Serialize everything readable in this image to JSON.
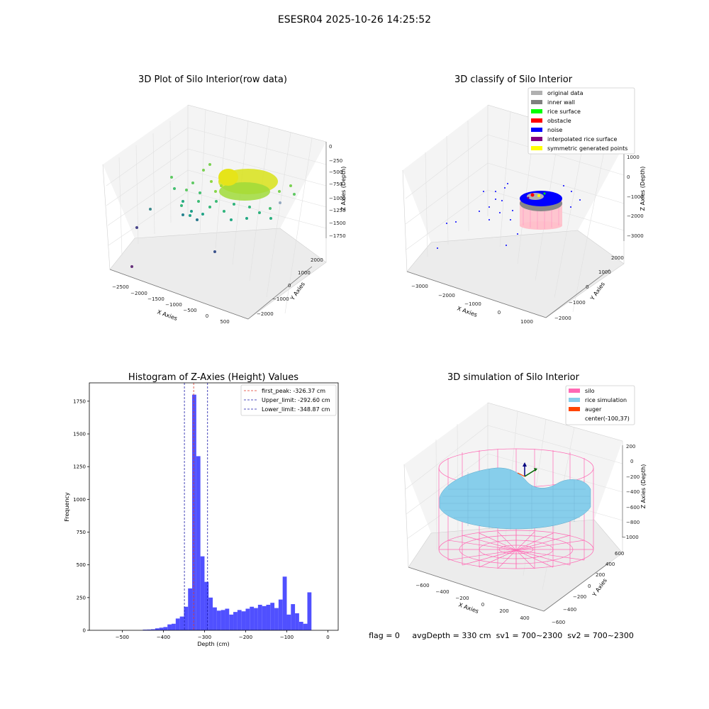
{
  "figure": {
    "suptitle": "ESESR04 2025-10-26 14:25:52",
    "status_line": "flag = 0     avgDepth = 330 cm  sv1 = 700~2300  sv2 = 700~2300",
    "colors": {
      "histogram_bar": "#5050ff",
      "first_peak_line": "#e03a2a",
      "limit_line": "#1a1aa8",
      "silo": "#ff69b4",
      "rice_simulation": "#87ceeb",
      "auger": "#ff4500"
    }
  },
  "chart_data": [
    {
      "type": "scatter",
      "title": "3D Plot of Silo Interior(row data)",
      "xlabel": "X Axies",
      "ylabel": "Y Axies",
      "zlabel": "Z Axies (Depth)",
      "x_ticks": [
        "−2500",
        "−2000",
        "−1500",
        "−1000",
        "−500",
        "0",
        "500"
      ],
      "y_ticks": [
        "−2000",
        "−1000",
        "0",
        "1000",
        "2000"
      ],
      "z_ticks": [
        "0",
        "−250",
        "−500",
        "−750",
        "−1000",
        "−1250",
        "−1500",
        "−1750"
      ],
      "grid": true
    },
    {
      "type": "scatter",
      "title": "3D classify of Silo Interior",
      "xlabel": "X Axies",
      "ylabel": "Y Axies",
      "zlabel": "Z Axies (Depth)",
      "x_ticks": [
        "−3000",
        "−2000",
        "−1000",
        "0",
        "1000"
      ],
      "y_ticks": [
        "−2000",
        "−1000",
        "0",
        "1000",
        "2000"
      ],
      "z_ticks": [
        "1000",
        "0",
        "−1000",
        "−2000",
        "−3000"
      ],
      "legend_position": "top-right",
      "legend": [
        {
          "label": "original data",
          "color": "#b0b0b0"
        },
        {
          "label": "inner wall",
          "color": "#808080"
        },
        {
          "label": "rice surface",
          "color": "#00ff00"
        },
        {
          "label": "obstacle",
          "color": "#ff0000"
        },
        {
          "label": "noise",
          "color": "#0000ff"
        },
        {
          "label": "interpolated rice surface",
          "color": "#800080"
        },
        {
          "label": "symmetric generated points",
          "color": "#ffff00"
        }
      ],
      "grid": true
    },
    {
      "type": "bar",
      "title": "Histogram of Z-Axies (Height) Values",
      "xlabel": "Depth (cm)",
      "ylabel": "Frequency",
      "xlim": [
        -580,
        25
      ],
      "ylim": [
        0,
        1890
      ],
      "x_ticks": [
        -500,
        -400,
        -300,
        -200,
        -100,
        0
      ],
      "x_tick_labels": [
        "−500",
        "−400",
        "−300",
        "−200",
        "−100",
        "0"
      ],
      "y_ticks": [
        0,
        250,
        500,
        750,
        1000,
        1250,
        1500,
        1750
      ],
      "bin_width": 10,
      "bin_start": [
        -450,
        -440,
        -430,
        -420,
        -410,
        -400,
        -390,
        -380,
        -370,
        -360,
        -350,
        -340,
        -330,
        -320,
        -310,
        -300,
        -290,
        -280,
        -270,
        -260,
        -250,
        -240,
        -230,
        -220,
        -210,
        -200,
        -190,
        -180,
        -170,
        -160,
        -150,
        -140,
        -130,
        -120,
        -110,
        -100,
        -90,
        -80,
        -70,
        -60,
        -50,
        -40,
        -30,
        -20,
        -10
      ],
      "values": [
        5,
        6,
        8,
        15,
        20,
        25,
        45,
        50,
        90,
        105,
        180,
        320,
        1800,
        1330,
        565,
        370,
        250,
        175,
        150,
        155,
        165,
        120,
        140,
        155,
        145,
        165,
        180,
        170,
        195,
        185,
        195,
        210,
        170,
        235,
        410,
        120,
        200,
        130,
        65,
        50,
        290,
        0,
        0,
        0,
        0
      ],
      "vlines": [
        {
          "x": -326.37,
          "style": "first_peak"
        },
        {
          "x": -292.6,
          "style": "limit"
        },
        {
          "x": -348.87,
          "style": "limit"
        }
      ],
      "legend_position": "top-right",
      "legend": [
        "first_peak: -326.37 cm",
        "Upper_limit: -292.60 cm",
        "Lower_limit: -348.87 cm"
      ],
      "grid": false
    },
    {
      "type": "scatter",
      "title": "3D simulation of Silo Interior",
      "xlabel": "X Axies",
      "ylabel": "Y Axies",
      "zlabel": "Z Axies (Depth)",
      "x_ticks": [
        "−600",
        "−400",
        "−200",
        "0",
        "200",
        "400"
      ],
      "y_ticks": [
        "−600",
        "−400",
        "−200",
        "0",
        "200",
        "400",
        "600"
      ],
      "z_ticks": [
        "200",
        "0",
        "−200",
        "−400",
        "−600",
        "−800",
        "−1000"
      ],
      "legend_position": "top-right",
      "legend": [
        {
          "label": "silo",
          "color": "#ff69b4"
        },
        {
          "label": "rice simulation",
          "color": "#87ceeb"
        },
        {
          "label": "auger",
          "color": "#ff4500"
        },
        {
          "label": "center(-100,37)",
          "color": ""
        }
      ],
      "grid": true
    }
  ]
}
